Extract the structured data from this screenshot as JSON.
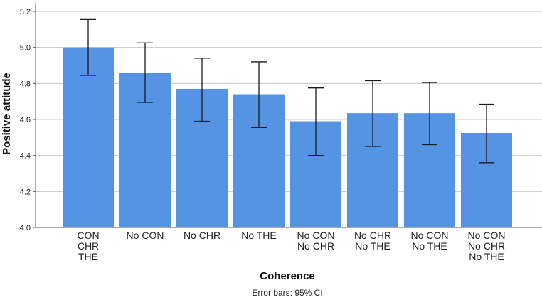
{
  "chart_data": {
    "type": "bar",
    "title": "",
    "xlabel": "Coherence",
    "ylabel": "Positive attitude",
    "ylim": [
      4.0,
      5.2
    ],
    "yticks": [
      4.0,
      4.2,
      4.4,
      4.6,
      4.8,
      5.0,
      5.2
    ],
    "ytick_labels": [
      "4.0",
      "4.2",
      "4.4",
      "4.6",
      "4.8",
      "5.0",
      "5.2"
    ],
    "grid": true,
    "bar_color": "#5594e3",
    "categories": [
      [
        "CON",
        "CHR",
        "THE"
      ],
      [
        "No CON"
      ],
      [
        "No CHR"
      ],
      [
        "No THE"
      ],
      [
        "No CON",
        "No CHR"
      ],
      [
        "No CHR",
        "No THE"
      ],
      [
        "No CON",
        "No THE"
      ],
      [
        "No CON",
        "No CHR",
        "No THE"
      ]
    ],
    "values": [
      5.0,
      4.86,
      4.77,
      4.74,
      4.59,
      4.635,
      4.635,
      4.525
    ],
    "ci_lower": [
      4.845,
      4.695,
      4.59,
      4.555,
      4.4,
      4.45,
      4.46,
      4.36
    ],
    "ci_upper": [
      5.155,
      5.025,
      4.94,
      4.92,
      4.775,
      4.815,
      4.805,
      4.685
    ],
    "footnote": "Error bars: 95% CI"
  }
}
